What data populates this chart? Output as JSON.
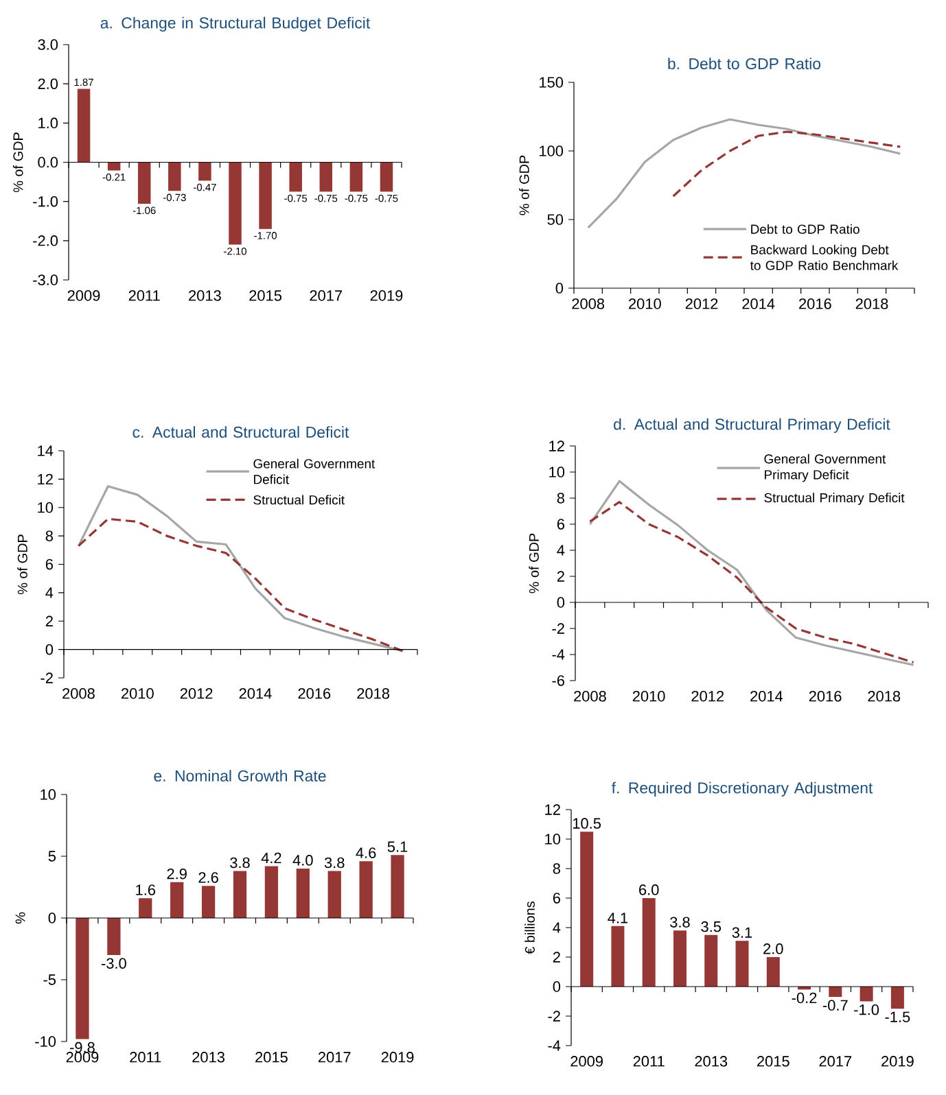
{
  "chart_data": [
    {
      "type": "bar",
      "title": "a. Change in Structural Budget Deficit",
      "ylabel": "% of GDP",
      "categories": [
        "2009",
        null,
        "2011",
        null,
        "2013",
        null,
        "2015",
        null,
        "2017",
        null,
        "2019"
      ],
      "values": [
        1.87,
        -0.21,
        -1.06,
        -0.73,
        -0.47,
        -2.1,
        -1.7,
        -0.75,
        -0.75,
        -0.75,
        -0.75
      ],
      "value_labels": [
        "1.87",
        "-0.21",
        "-1.06",
        "-0.73",
        "-0.47",
        "-2.10",
        "-1.70",
        "-0.75",
        "-0.75",
        "-0.75",
        "-0.75"
      ],
      "color": "#953735",
      "ylim": [
        -3,
        3
      ],
      "yticks": [
        {
          "value": -3,
          "label": "-3.0"
        },
        {
          "value": -2,
          "label": "-2.0"
        },
        {
          "value": -1,
          "label": "-1.0"
        },
        {
          "value": 0,
          "label": "0.0"
        },
        {
          "value": 1,
          "label": "1.0"
        },
        {
          "value": 2,
          "label": "2.0"
        },
        {
          "value": 3,
          "label": "3.0"
        }
      ]
    },
    {
      "type": "line",
      "title": "b. Debt to GDP Ratio",
      "ylabel": "% of GDP",
      "categories": [
        "2008",
        null,
        "2010",
        null,
        "2012",
        null,
        "2014",
        null,
        "2016",
        null,
        "2018",
        null
      ],
      "series": [
        {
          "name": "Debt to GDP Ratio",
          "color": "#a6a6a6",
          "line_style": "solid",
          "values": [
            44,
            65,
            92,
            108,
            117,
            123,
            119,
            116,
            111,
            107,
            103,
            98
          ]
        },
        {
          "name": "Backward Looking Debt to GDP Ratio Benchmark",
          "color": "#953735",
          "line_style": "dashed",
          "values": [
            null,
            null,
            null,
            67,
            86,
            100,
            111,
            114,
            112,
            109,
            106,
            103
          ]
        }
      ],
      "ylim": [
        0,
        150
      ],
      "yticks": [
        0,
        50,
        100,
        150
      ],
      "legend": "bottom right"
    },
    {
      "type": "line",
      "title": "c. Actual and Structural Deficit",
      "ylabel": "% of GDP",
      "categories": [
        "2008",
        null,
        "2010",
        null,
        "2012",
        null,
        "2014",
        null,
        "2016",
        null,
        "2018",
        null
      ],
      "series": [
        {
          "name": "General Government Deficit",
          "color": "#a6a6a6",
          "line_style": "solid",
          "values": [
            7.3,
            11.5,
            10.9,
            9.4,
            7.6,
            7.4,
            4.3,
            2.2,
            1.5,
            0.9,
            0.4,
            -0.1
          ]
        },
        {
          "name": "Structual Deficit",
          "color": "#953735",
          "line_style": "dashed",
          "values": [
            7.3,
            9.2,
            9.0,
            8.0,
            7.3,
            6.8,
            5.0,
            2.9,
            2.1,
            1.4,
            0.7,
            -0.1
          ]
        }
      ],
      "ylim": [
        -2,
        14
      ],
      "yticks": [
        -2,
        0,
        2,
        4,
        6,
        8,
        10,
        12,
        14
      ],
      "legend": "top right"
    },
    {
      "type": "line",
      "title": "d. Actual and Structural Primary Deficit",
      "ylabel": "% of GDP",
      "categories": [
        "2008",
        null,
        "2010",
        null,
        "2012",
        null,
        "2014",
        null,
        "2016",
        null,
        "2018",
        null
      ],
      "series": [
        {
          "name": "General Government Primary Deficit",
          "color": "#a6a6a6",
          "line_style": "solid",
          "values": [
            6.0,
            9.3,
            7.5,
            5.9,
            4.0,
            2.5,
            -0.6,
            -2.7,
            -3.3,
            -3.8,
            -4.3,
            -4.8
          ]
        },
        {
          "name": "Structual Primary Deficit",
          "color": "#953735",
          "line_style": "dashed",
          "values": [
            6.2,
            7.7,
            6.0,
            5.0,
            3.6,
            1.9,
            -0.4,
            -2.0,
            -2.7,
            -3.2,
            -3.9,
            -4.6
          ]
        }
      ],
      "ylim": [
        -6,
        12
      ],
      "yticks": [
        -6,
        -4,
        -2,
        0,
        2,
        4,
        6,
        8,
        10,
        12
      ],
      "legend": "top right"
    },
    {
      "type": "bar",
      "title": "e. Nominal Growth Rate",
      "ylabel": "%",
      "categories": [
        "2009",
        null,
        "2011",
        null,
        "2013",
        null,
        "2015",
        null,
        "2017",
        null,
        "2019"
      ],
      "values": [
        -9.8,
        -3.0,
        1.6,
        2.9,
        2.6,
        3.8,
        4.2,
        4.0,
        3.8,
        4.6,
        5.1
      ],
      "value_labels": [
        "-9.8",
        "-3.0",
        "1.6",
        "2.9",
        "2.6",
        "3.8",
        "4.2",
        "4.0",
        "3.8",
        "4.6",
        "5.1"
      ],
      "color": "#953735",
      "ylim": [
        -10,
        10
      ],
      "yticks": [
        -10,
        -5,
        0,
        5,
        10
      ]
    },
    {
      "type": "bar",
      "title": "f. Required Discretionary Adjustment",
      "ylabel": "€ billions",
      "categories": [
        "2009",
        null,
        "2011",
        null,
        "2013",
        null,
        "2015",
        null,
        "2017",
        null,
        "2019"
      ],
      "values": [
        10.5,
        4.1,
        6.0,
        3.8,
        3.5,
        3.1,
        2.0,
        -0.2,
        -0.7,
        -1.0,
        -1.5
      ],
      "value_labels": [
        "10.5",
        "4.1",
        "6.0",
        "3.8",
        "3.5",
        "3.1",
        "2.0",
        "-0.2",
        "-0.7",
        "-1.0",
        "-1.5"
      ],
      "color": "#953735",
      "ylim": [
        -4,
        12
      ],
      "yticks": [
        -4,
        -2,
        0,
        2,
        4,
        6,
        8,
        10,
        12
      ]
    }
  ]
}
